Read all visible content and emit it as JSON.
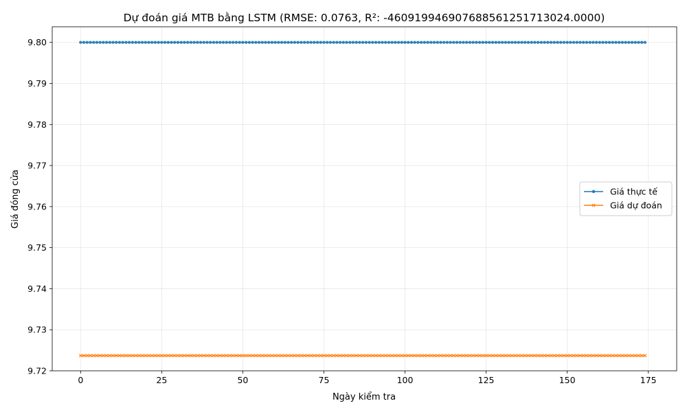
{
  "chart_data": {
    "type": "line",
    "title": "Dự đoán giá MTB bằng LSTM (RMSE: 0.0763, R²: -460919946907688561251713024.0000)",
    "xlabel": "Ngày kiểm tra",
    "ylabel": "Giá đóng cửa",
    "xlim": [
      -8.75,
      183.75
    ],
    "ylim": [
      9.72,
      9.8038
    ],
    "xticks": [
      0,
      25,
      50,
      75,
      100,
      125,
      150,
      175
    ],
    "yticks": [
      9.72,
      9.73,
      9.74,
      9.75,
      9.76,
      9.77,
      9.78,
      9.79,
      9.8
    ],
    "ytick_labels": [
      "9.72",
      "9.73",
      "9.74",
      "9.75",
      "9.76",
      "9.77",
      "9.78",
      "9.79",
      "9.80"
    ],
    "grid": true,
    "legend_position": "center-right",
    "n_points": 175,
    "series": [
      {
        "name": "Giá thực tế",
        "constant_value": 9.8,
        "color": "#1f77b4",
        "marker": "circle"
      },
      {
        "name": "Giá dự đoán",
        "constant_value": 9.7237,
        "color": "#ff7f0e",
        "marker": "x"
      }
    ]
  }
}
